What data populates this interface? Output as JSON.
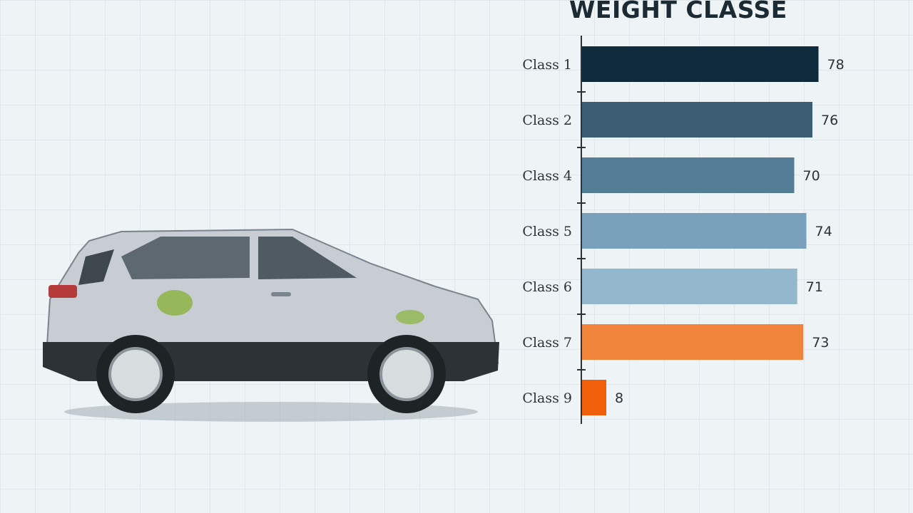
{
  "chart_data": {
    "type": "bar",
    "orientation": "horizontal",
    "title": "WEIGHT CLASSE",
    "categories": [
      "Class 1",
      "Class 2",
      "Class 4",
      "Class 5",
      "Class 6",
      "Class 7",
      "Class 9"
    ],
    "values": [
      78,
      76,
      70,
      74,
      71,
      73,
      8
    ],
    "data_labels": [
      "78",
      "76",
      "70",
      "74",
      "71",
      "73",
      "8"
    ],
    "colors": [
      "#0f2a3d",
      "#3d5d75",
      "#547d98",
      "#7aa1bb",
      "#93b7cc",
      "#f0843a",
      "#f0600a"
    ],
    "xlim": [
      0,
      80
    ],
    "grid": true,
    "legend": "none"
  }
}
